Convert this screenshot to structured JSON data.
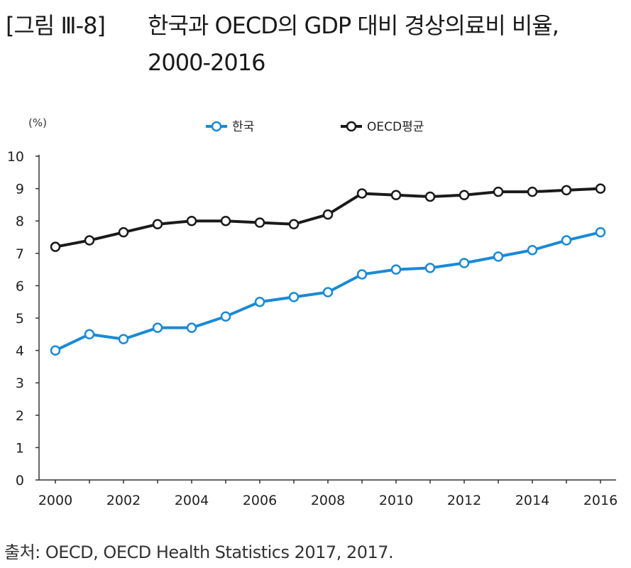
{
  "figure": {
    "label": "[그림 Ⅲ-8]",
    "title_line1": "한국과 OECD의 GDP 대비 경상의료비 비율,",
    "title_line2": "2000-2016",
    "source": "출처: OECD, OECD Health Statistics 2017, 2017."
  },
  "colors": {
    "korea": "#1a8ad4",
    "oecd": "#1a1a1a",
    "axis": "#333333"
  },
  "chart_data": {
    "type": "line",
    "unit_label": "(%)",
    "x": [
      2000,
      2001,
      2002,
      2003,
      2004,
      2005,
      2006,
      2007,
      2008,
      2009,
      2010,
      2011,
      2012,
      2013,
      2014,
      2015,
      2016
    ],
    "x_tick_labels": [
      "2000",
      "2002",
      "2004",
      "2006",
      "2008",
      "2010",
      "2012",
      "2014",
      "2016"
    ],
    "ylim": [
      0,
      10
    ],
    "y_ticks": [
      0,
      1,
      2,
      3,
      4,
      5,
      6,
      7,
      8,
      9,
      10
    ],
    "grid": false,
    "legend_position": "top-center",
    "series": [
      {
        "name": "한국",
        "values": [
          4.0,
          4.5,
          4.35,
          4.7,
          4.7,
          5.05,
          5.5,
          5.65,
          5.8,
          6.35,
          6.5,
          6.55,
          6.7,
          6.9,
          7.1,
          7.4,
          7.65
        ]
      },
      {
        "name": "OECD평균",
        "values": [
          7.2,
          7.4,
          7.65,
          7.9,
          8.0,
          8.0,
          7.95,
          7.9,
          8.2,
          8.85,
          8.8,
          8.75,
          8.8,
          8.9,
          8.9,
          8.95,
          9.0
        ]
      }
    ]
  }
}
